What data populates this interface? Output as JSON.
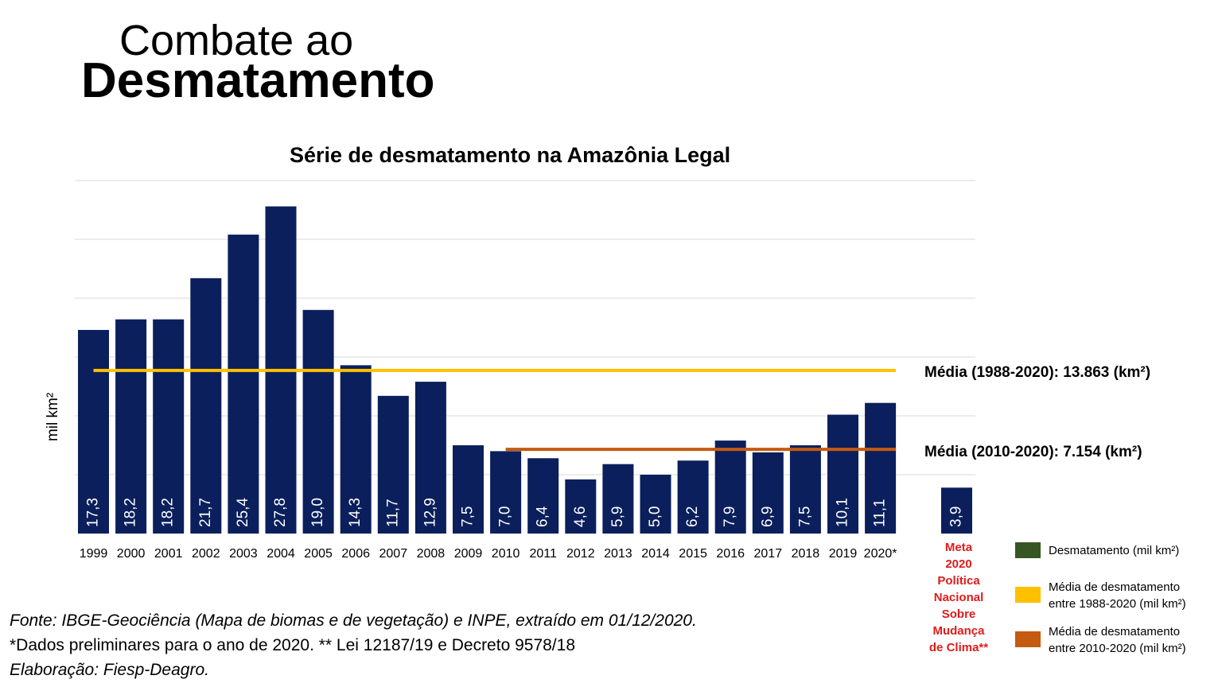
{
  "slide": {
    "title_line1": "Combate ao",
    "title_line2": "Desmatamento"
  },
  "chart_data": {
    "type": "bar",
    "title": "Série de desmatamento na Amazônia Legal",
    "ylabel": "mil km²",
    "xlabel": "",
    "ylim": [
      0,
      30
    ],
    "grid": true,
    "categories": [
      "1999",
      "2000",
      "2001",
      "2002",
      "2003",
      "2004",
      "2005",
      "2006",
      "2007",
      "2008",
      "2009",
      "2010",
      "2011",
      "2012",
      "2013",
      "2014",
      "2015",
      "2016",
      "2017",
      "2018",
      "2019",
      "2020*"
    ],
    "values": [
      17.3,
      18.2,
      18.2,
      21.7,
      25.4,
      27.8,
      19.0,
      14.3,
      11.7,
      12.9,
      7.5,
      7.0,
      6.4,
      4.6,
      5.9,
      5.0,
      6.2,
      7.9,
      6.9,
      7.5,
      10.1,
      11.1
    ],
    "data_labels": [
      "17,3",
      "18,2",
      "18,2",
      "21,7",
      "25,4",
      "27,8",
      "19,0",
      "14,3",
      "11,7",
      "12,9",
      "7,5",
      "7,0",
      "6,4",
      "4,6",
      "5,9",
      "5,0",
      "6,2",
      "7,9",
      "6,9",
      "7,5",
      "10,1",
      "11,1"
    ],
    "bar_color": "#0b1f5c",
    "goal": {
      "value": 3.9,
      "data_label": "3,9",
      "label_lines": [
        "Meta",
        "2020",
        "Política",
        "Nacional",
        "Sobre",
        "Mudança",
        "de Clima**"
      ],
      "label_color": "#e01b1b"
    },
    "reference_lines": [
      {
        "value": 13.863,
        "from": "1999",
        "to": "2020*",
        "color": "#ffc000",
        "label": "Média (1988-2020): 13.863 (km²)"
      },
      {
        "value": 7.154,
        "from": "2010",
        "to": "2020*",
        "color": "#c55a11",
        "label": "Média (2010-2020): 7.154 (km²)"
      }
    ],
    "legend": {
      "placement": "bottom-right",
      "items": [
        {
          "color": "#375623",
          "lines": [
            "Desmatamento (mil km²)"
          ]
        },
        {
          "color": "#ffc000",
          "lines": [
            "Média de desmatamento",
            "entre 1988-2020 (mil km²)"
          ]
        },
        {
          "color": "#c55a11",
          "lines": [
            "Média de desmatamento",
            "entre 2010-2020 (mil km²)"
          ]
        }
      ]
    }
  },
  "footer": {
    "source": "Fonte: IBGE-Geociência (Mapa de biomas e de vegetação) e INPE, extraído em 01/12/2020.",
    "note": "*Dados preliminares para o ano de 2020. ** Lei 12187/19 e Decreto 9578/18",
    "credit": "Elaboração: Fiesp-Deagro."
  }
}
